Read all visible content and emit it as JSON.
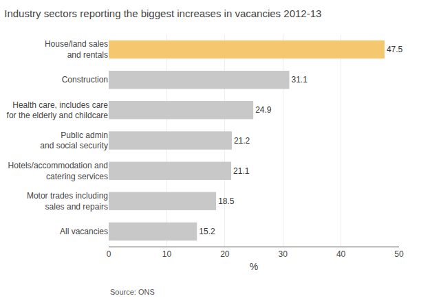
{
  "chart_data": {
    "type": "bar",
    "orientation": "horizontal",
    "title": "Industry sectors reporting the biggest increases in vacancies 2012-13",
    "categories": [
      "All vacancies",
      "Motor trades including\nsales and repairs",
      "Hotels/accommodation and\ncatering services",
      "Public admin\nand social security",
      "Health care, includes care\nfor the elderly and childcare",
      "Construction",
      "House/land sales\nand rentals"
    ],
    "values": [
      15.2,
      18.5,
      21.1,
      21.2,
      24.9,
      31.1,
      47.5
    ],
    "colors": [
      "#c8c8c8",
      "#c8c8c8",
      "#c8c8c8",
      "#c8c8c8",
      "#c8c8c8",
      "#c8c8c8",
      "#f5c870"
    ],
    "xlabel": "%",
    "xlim": [
      0,
      50
    ],
    "xticks": [
      0,
      10,
      20,
      30,
      40,
      50
    ],
    "grid": true,
    "data_labels": true,
    "annotations": [
      "Source: ONS"
    ]
  }
}
